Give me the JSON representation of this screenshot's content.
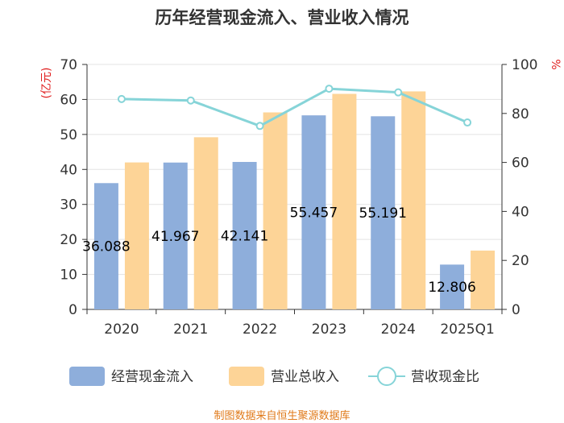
{
  "chart_data": {
    "type": "bar+line",
    "title": "历年经营现金流入、营业收入情况",
    "categories": [
      "2020",
      "2021",
      "2022",
      "2023",
      "2024",
      "2025Q1"
    ],
    "series": [
      {
        "name": "经营现金流入",
        "type": "bar",
        "axis": "left",
        "color": "#8eaedb",
        "values": [
          36.088,
          41.967,
          42.141,
          55.457,
          55.191,
          12.806
        ],
        "labels": [
          "36.088",
          "41.967",
          "42.141",
          "55.457",
          "55.191",
          "12.806"
        ]
      },
      {
        "name": "营业总收入",
        "type": "bar",
        "axis": "left",
        "color": "#fdd497",
        "values": [
          42.0,
          49.2,
          56.3,
          61.6,
          62.3,
          16.8
        ]
      },
      {
        "name": "营收现金比",
        "type": "line",
        "axis": "right",
        "color": "#86d4d8",
        "values": [
          85.9,
          85.3,
          74.9,
          90.1,
          88.6,
          76.3
        ]
      }
    ],
    "left_axis": {
      "unit": "(亿元)",
      "ylim": [
        0,
        70
      ],
      "ticks": [
        0,
        10,
        20,
        30,
        40,
        50,
        60,
        70
      ]
    },
    "right_axis": {
      "unit": "%",
      "ylim": [
        0,
        100
      ],
      "ticks": [
        0,
        20,
        40,
        60,
        80,
        100
      ]
    },
    "grid": true,
    "legend_position": "bottom"
  },
  "source": "制图数据来自恒生聚源数据库"
}
